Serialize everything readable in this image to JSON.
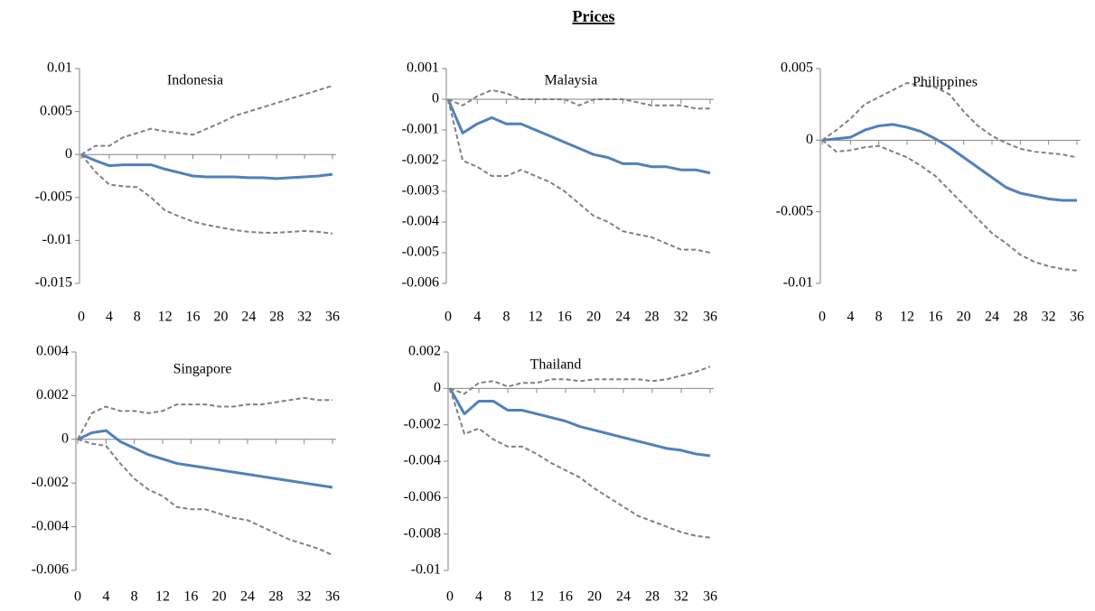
{
  "title": "Prices",
  "chart_data": [
    {
      "type": "line",
      "title": "Indonesia",
      "x": [
        0,
        2,
        4,
        6,
        8,
        10,
        12,
        14,
        16,
        18,
        20,
        22,
        24,
        26,
        28,
        30,
        32,
        34,
        36
      ],
      "xlim": [
        0,
        36
      ],
      "xticks": [
        0,
        4,
        8,
        12,
        16,
        20,
        24,
        28,
        32,
        36
      ],
      "ylim": [
        -0.015,
        0.01
      ],
      "yticks": [
        0.01,
        0.005,
        0,
        -0.005,
        -0.01,
        -0.015
      ],
      "series": [
        {
          "color": "#4f81bd",
          "line_style": "solid",
          "values": [
            0,
            -0.0007,
            -0.0013,
            -0.0012,
            -0.0012,
            -0.0012,
            -0.0017,
            -0.0021,
            -0.0025,
            -0.0026,
            -0.0026,
            -0.0026,
            -0.0027,
            -0.0027,
            -0.0028,
            -0.0027,
            -0.0026,
            -0.0025,
            -0.0023
          ]
        },
        {
          "color": "#808080",
          "line_style": "dashed",
          "values": [
            0,
            0.001,
            0.001,
            0.002,
            0.0025,
            0.003,
            0.0027,
            0.0025,
            0.0023,
            0.003,
            0.0037,
            0.0045,
            0.005,
            0.0055,
            0.006,
            0.0065,
            0.007,
            0.0075,
            0.008
          ]
        },
        {
          "color": "#808080",
          "line_style": "dashed",
          "values": [
            0,
            -0.002,
            -0.0035,
            -0.0037,
            -0.0038,
            -0.005,
            -0.0065,
            -0.0072,
            -0.0078,
            -0.0082,
            -0.0085,
            -0.0088,
            -0.009,
            -0.0091,
            -0.0091,
            -0.009,
            -0.0089,
            -0.009,
            -0.0092
          ]
        }
      ]
    },
    {
      "type": "line",
      "title": "Malaysia",
      "x": [
        0,
        2,
        4,
        6,
        8,
        10,
        12,
        14,
        16,
        18,
        20,
        22,
        24,
        26,
        28,
        30,
        32,
        34,
        36
      ],
      "xlim": [
        0,
        36
      ],
      "xticks": [
        0,
        4,
        8,
        12,
        16,
        20,
        24,
        28,
        32,
        36
      ],
      "ylim": [
        -0.006,
        0.001
      ],
      "yticks": [
        0.001,
        0,
        -0.001,
        -0.002,
        -0.003,
        -0.004,
        -0.005,
        -0.006
      ],
      "series": [
        {
          "color": "#4f81bd",
          "line_style": "solid",
          "values": [
            0,
            -0.0011,
            -0.0008,
            -0.0006,
            -0.0008,
            -0.0008,
            -0.001,
            -0.0012,
            -0.0014,
            -0.0016,
            -0.0018,
            -0.0019,
            -0.0021,
            -0.0021,
            -0.0022,
            -0.0022,
            -0.0023,
            -0.0023,
            -0.0024
          ]
        },
        {
          "color": "#808080",
          "line_style": "dashed",
          "values": [
            0,
            -0.0002,
            0.0001,
            0.0003,
            0.0002,
            0,
            0,
            0,
            0,
            -0.0002,
            0,
            0,
            0,
            -0.0001,
            -0.0002,
            -0.0002,
            -0.0002,
            -0.0003,
            -0.0003
          ]
        },
        {
          "color": "#808080",
          "line_style": "dashed",
          "values": [
            0,
            -0.002,
            -0.0022,
            -0.0025,
            -0.0025,
            -0.0023,
            -0.0025,
            -0.0027,
            -0.003,
            -0.0034,
            -0.0038,
            -0.004,
            -0.0043,
            -0.0044,
            -0.0045,
            -0.0047,
            -0.0049,
            -0.0049,
            -0.005
          ]
        }
      ]
    },
    {
      "type": "line",
      "title": "Philippines",
      "x": [
        0,
        2,
        4,
        6,
        8,
        10,
        12,
        14,
        16,
        18,
        20,
        22,
        24,
        26,
        28,
        30,
        32,
        34,
        36
      ],
      "xlim": [
        0,
        36
      ],
      "xticks": [
        0,
        4,
        8,
        12,
        16,
        20,
        24,
        28,
        32,
        36
      ],
      "ylim": [
        -0.01,
        0.005
      ],
      "yticks": [
        0.005,
        0,
        -0.005,
        -0.01
      ],
      "series": [
        {
          "color": "#4f81bd",
          "line_style": "solid",
          "values": [
            0,
            0.0001,
            0.0002,
            0.0007,
            0.001,
            0.0011,
            0.0009,
            0.0006,
            0.0001,
            -0.0005,
            -0.0012,
            -0.0019,
            -0.0026,
            -0.0033,
            -0.0037,
            -0.0039,
            -0.0041,
            -0.0042,
            -0.0042
          ]
        },
        {
          "color": "#808080",
          "line_style": "dashed",
          "values": [
            0,
            0.0007,
            0.0015,
            0.0025,
            0.003,
            0.0035,
            0.004,
            0.0038,
            0.0037,
            0.0032,
            0.002,
            0.001,
            0.0003,
            -0.0002,
            -0.0006,
            -0.0008,
            -0.0009,
            -0.001,
            -0.0012
          ]
        },
        {
          "color": "#808080",
          "line_style": "dashed",
          "values": [
            0,
            -0.0008,
            -0.0007,
            -0.0005,
            -0.0004,
            -0.0008,
            -0.0012,
            -0.0018,
            -0.0025,
            -0.0035,
            -0.0045,
            -0.0055,
            -0.0065,
            -0.0072,
            -0.008,
            -0.0085,
            -0.0088,
            -0.009,
            -0.0091
          ]
        }
      ]
    },
    {
      "type": "line",
      "title": "Singapore",
      "x": [
        0,
        2,
        4,
        6,
        8,
        10,
        12,
        14,
        16,
        18,
        20,
        22,
        24,
        26,
        28,
        30,
        32,
        34,
        36
      ],
      "xlim": [
        0,
        36
      ],
      "xticks": [
        0,
        4,
        8,
        12,
        16,
        20,
        24,
        28,
        32,
        36
      ],
      "ylim": [
        -0.006,
        0.004
      ],
      "yticks": [
        0.004,
        0.002,
        0,
        -0.002,
        -0.004,
        -0.006
      ],
      "series": [
        {
          "color": "#4f81bd",
          "line_style": "solid",
          "values": [
            0,
            0.0003,
            0.0004,
            -0.0001,
            -0.0004,
            -0.0007,
            -0.0009,
            -0.0011,
            -0.0012,
            -0.0013,
            -0.0014,
            -0.0015,
            -0.0016,
            -0.0017,
            -0.0018,
            -0.0019,
            -0.002,
            -0.0021,
            -0.0022
          ]
        },
        {
          "color": "#808080",
          "line_style": "dashed",
          "values": [
            0,
            0.0012,
            0.0015,
            0.0013,
            0.0013,
            0.0012,
            0.0013,
            0.0016,
            0.0016,
            0.0016,
            0.0015,
            0.0015,
            0.0016,
            0.0016,
            0.0017,
            0.0018,
            0.0019,
            0.0018,
            0.0018
          ]
        },
        {
          "color": "#808080",
          "line_style": "dashed",
          "values": [
            0,
            -0.0002,
            -0.0003,
            -0.0011,
            -0.0018,
            -0.0023,
            -0.0026,
            -0.0031,
            -0.0032,
            -0.0032,
            -0.0034,
            -0.0036,
            -0.0037,
            -0.004,
            -0.0043,
            -0.0046,
            -0.0048,
            -0.005,
            -0.0053
          ]
        }
      ]
    },
    {
      "type": "line",
      "title": "Thailand",
      "x": [
        0,
        2,
        4,
        6,
        8,
        10,
        12,
        14,
        16,
        18,
        20,
        22,
        24,
        26,
        28,
        30,
        32,
        34,
        36
      ],
      "xlim": [
        0,
        36
      ],
      "xticks": [
        0,
        4,
        8,
        12,
        16,
        20,
        24,
        28,
        32,
        36
      ],
      "ylim": [
        -0.01,
        0.002
      ],
      "yticks": [
        0.002,
        0,
        -0.002,
        -0.004,
        -0.006,
        -0.008,
        -0.01
      ],
      "series": [
        {
          "color": "#4f81bd",
          "line_style": "solid",
          "values": [
            0,
            -0.0014,
            -0.0007,
            -0.0007,
            -0.0012,
            -0.0012,
            -0.0014,
            -0.0016,
            -0.0018,
            -0.0021,
            -0.0023,
            -0.0025,
            -0.0027,
            -0.0029,
            -0.0031,
            -0.0033,
            -0.0034,
            -0.0036,
            -0.0037
          ]
        },
        {
          "color": "#808080",
          "line_style": "dashed",
          "values": [
            0,
            -0.0003,
            0.0003,
            0.0004,
            0.0001,
            0.0003,
            0.0003,
            0.0005,
            0.0005,
            0.0004,
            0.0005,
            0.0005,
            0.0005,
            0.0005,
            0.0004,
            0.0005,
            0.0007,
            0.0009,
            0.0012
          ]
        },
        {
          "color": "#808080",
          "line_style": "dashed",
          "values": [
            0,
            -0.0025,
            -0.0022,
            -0.0028,
            -0.0032,
            -0.0032,
            -0.0036,
            -0.0041,
            -0.0045,
            -0.0049,
            -0.0055,
            -0.006,
            -0.0065,
            -0.007,
            -0.0073,
            -0.0076,
            -0.0079,
            -0.0081,
            -0.0082
          ]
        }
      ]
    }
  ]
}
